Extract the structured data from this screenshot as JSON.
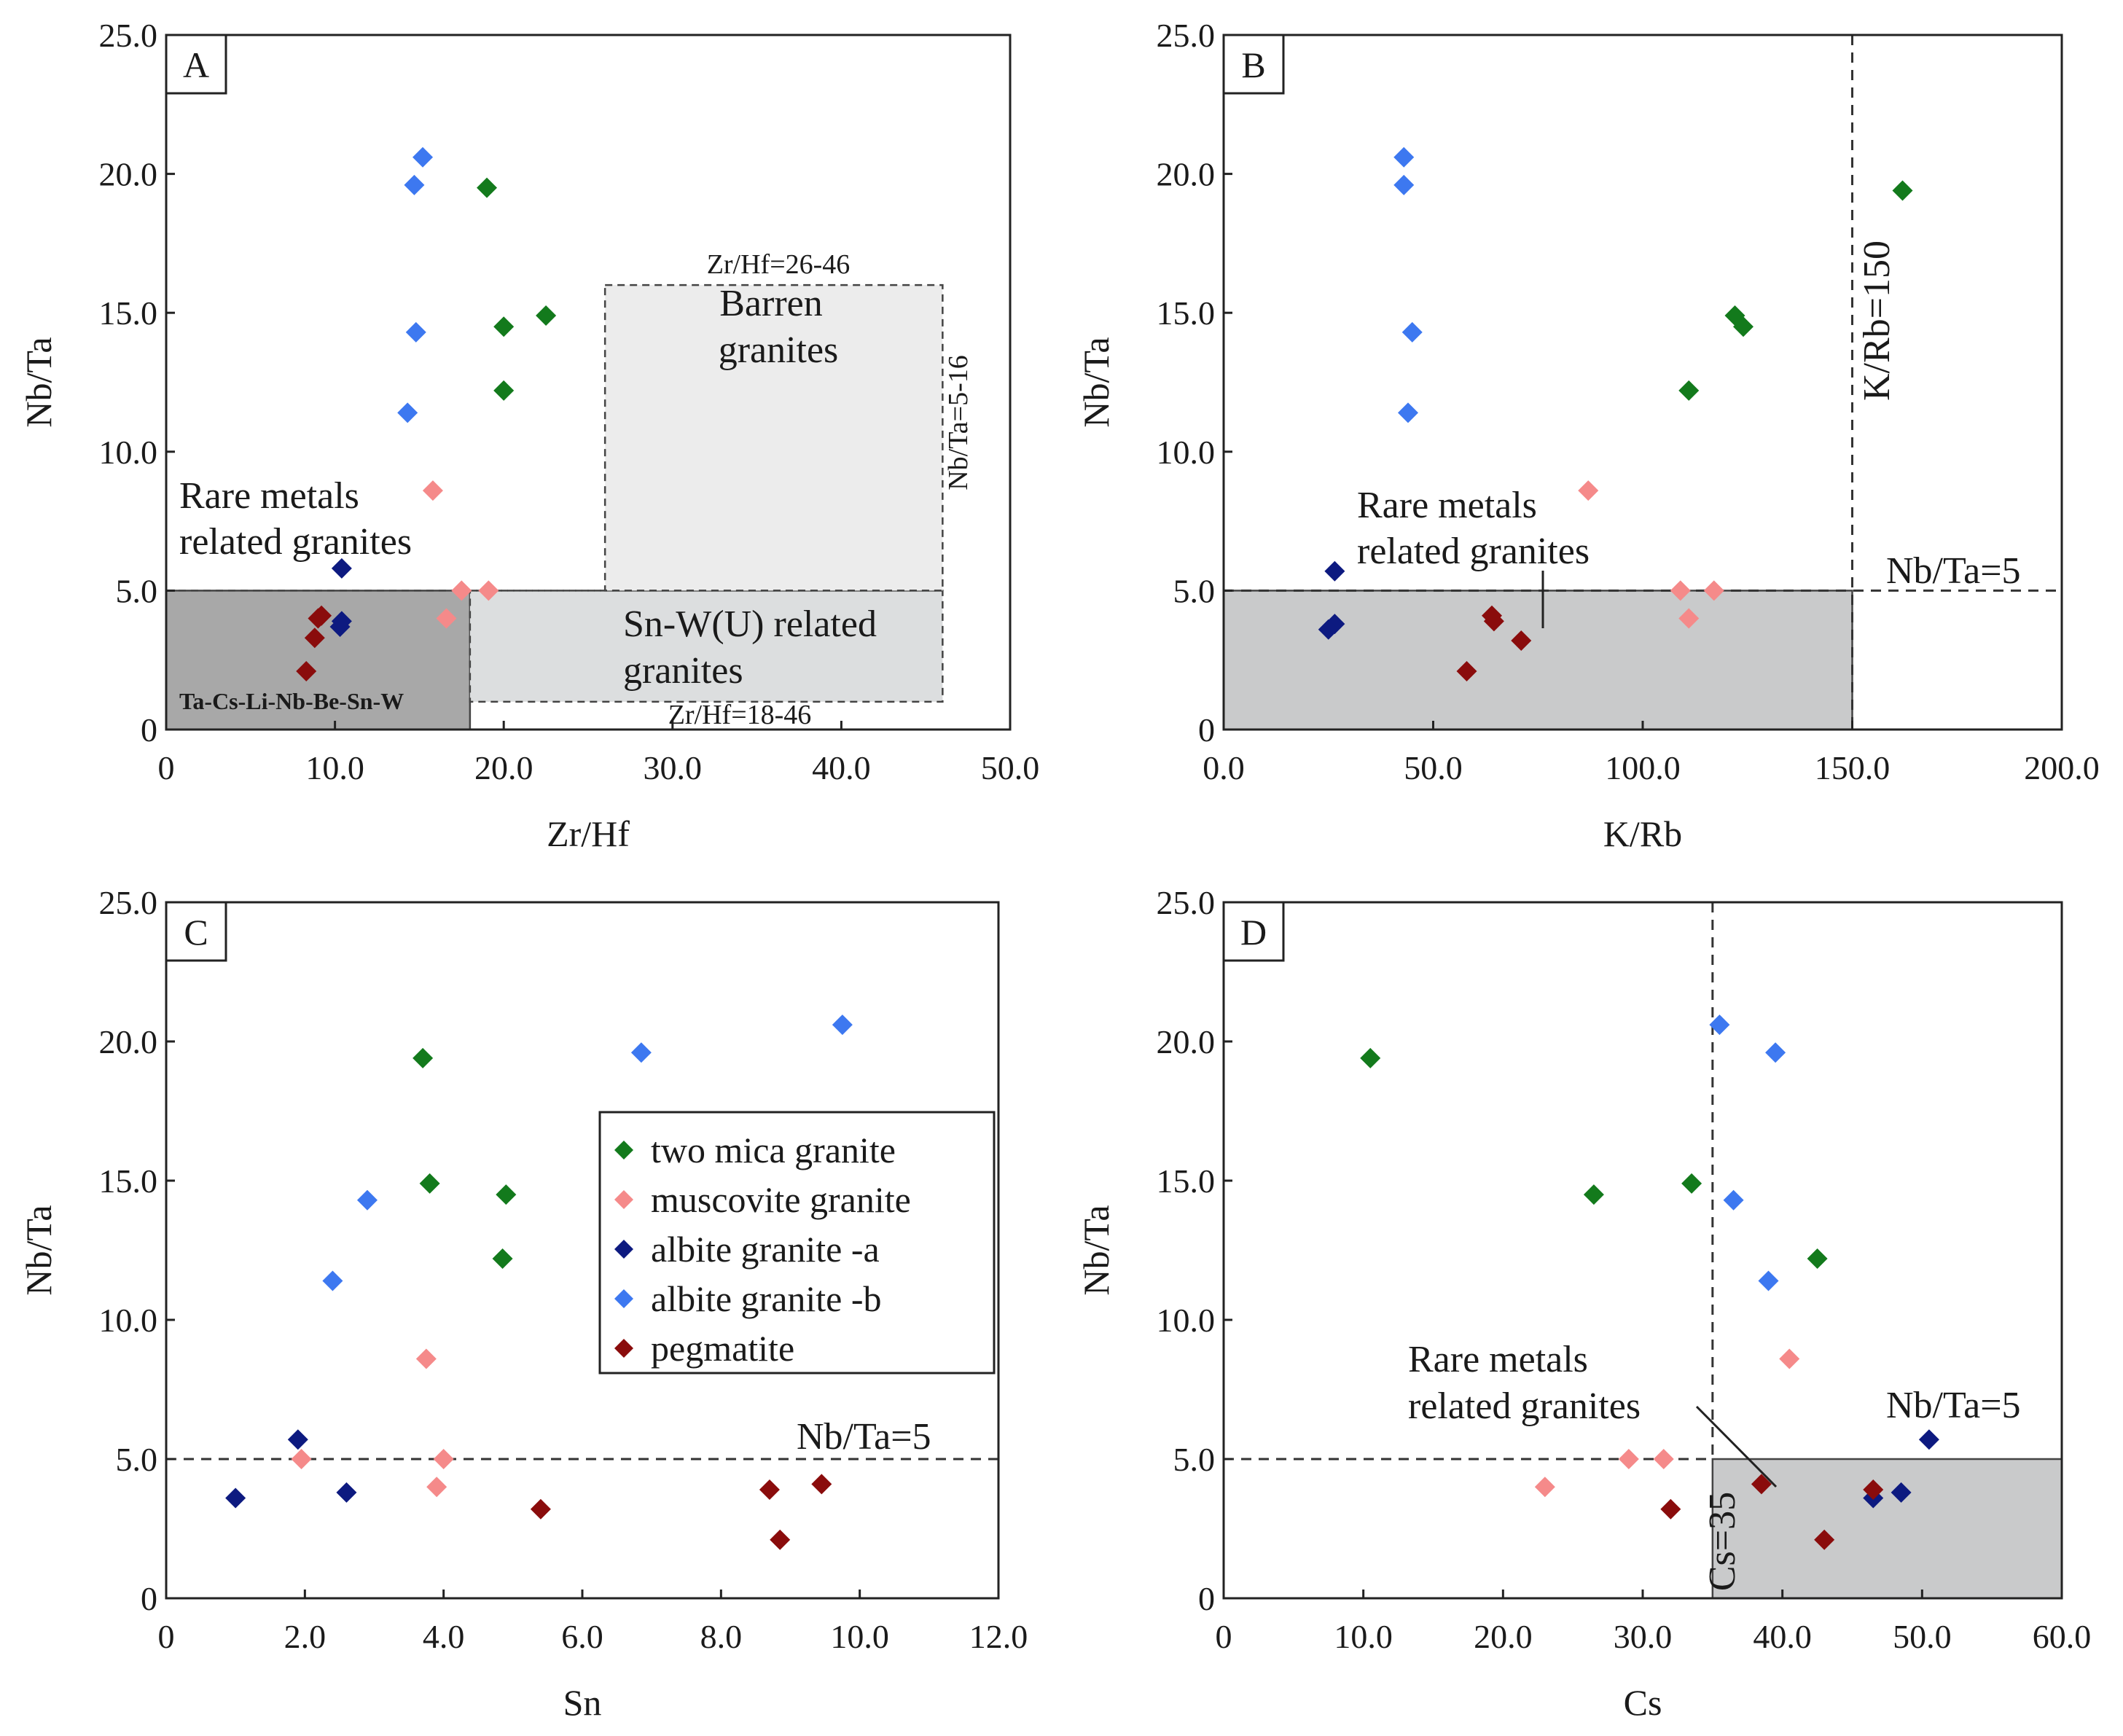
{
  "figure": {
    "legend": [
      {
        "name": "two mica granite",
        "color": "#137a1c"
      },
      {
        "name": "muscovite granite",
        "color": "#f58a8a"
      },
      {
        "name": "albite granite -a",
        "color": "#0d1a80"
      },
      {
        "name": "albite granite -b",
        "color": "#3d78f0"
      },
      {
        "name": "pegmatite",
        "color": "#8a0c0c"
      }
    ]
  },
  "chart_data": [
    {
      "panel": "A",
      "type": "scatter",
      "xlabel": "Zr/Hf",
      "ylabel": "Nb/Ta",
      "xlim": [
        0,
        50
      ],
      "ylim": [
        0,
        25
      ],
      "xticks": [
        "0",
        "10.0",
        "20.0",
        "30.0",
        "40.0",
        "50.0"
      ],
      "yticks": [
        "0",
        "5.0",
        "10.0",
        "15.0",
        "20.0",
        "25.0"
      ],
      "regions": [
        {
          "label": "Ta-Cs-Li-Nb-Be-Sn-W",
          "x": [
            0,
            18
          ],
          "y": [
            0,
            5
          ],
          "fill": "#a8a8a8"
        },
        {
          "label": "Sn-W(U) related granites",
          "x": [
            18,
            46
          ],
          "y": [
            1,
            5
          ],
          "fill": "#dcdedf"
        },
        {
          "label": "Barren granites",
          "x": [
            26,
            46
          ],
          "y": [
            5,
            16
          ],
          "fill": "#ececec"
        }
      ],
      "annotations": [
        "Rare metals",
        "related granites",
        "Barren",
        "granites",
        "Sn-W(U) related",
        "granites",
        "Zr/Hf=26-46",
        "Zr/Hf=18-46",
        "Nb/Ta=5-16",
        "Ta-Cs-Li-Nb-Be-Sn-W"
      ],
      "series": [
        {
          "name": "two mica granite",
          "points": [
            [
              19.0,
              19.5
            ],
            [
              20.0,
              14.5
            ],
            [
              22.5,
              14.9
            ],
            [
              20.0,
              12.2
            ]
          ]
        },
        {
          "name": "muscovite granite",
          "points": [
            [
              15.8,
              8.6
            ],
            [
              17.5,
              5.0
            ],
            [
              19.1,
              5.0
            ],
            [
              16.6,
              4.0
            ]
          ]
        },
        {
          "name": "albite granite -a",
          "points": [
            [
              10.4,
              5.8
            ],
            [
              10.4,
              3.9
            ],
            [
              10.3,
              3.7
            ]
          ]
        },
        {
          "name": "albite granite -b",
          "points": [
            [
              15.2,
              20.6
            ],
            [
              14.7,
              19.6
            ],
            [
              14.8,
              14.3
            ],
            [
              14.3,
              11.4
            ]
          ]
        },
        {
          "name": "pegmatite",
          "points": [
            [
              9.2,
              4.1
            ],
            [
              9.0,
              4.0
            ],
            [
              8.8,
              3.3
            ],
            [
              8.3,
              2.1
            ]
          ]
        }
      ]
    },
    {
      "panel": "B",
      "type": "scatter",
      "xlabel": "K/Rb",
      "ylabel": "Nb/Ta",
      "xlim": [
        0,
        200
      ],
      "ylim": [
        0,
        25
      ],
      "xticks": [
        "0.0",
        "50.0",
        "100.0",
        "150.0",
        "200.0"
      ],
      "yticks": [
        "0",
        "5.0",
        "10.0",
        "15.0",
        "20.0",
        "25.0"
      ],
      "regions": [
        {
          "label": "Rare metals related granites",
          "x": [
            0,
            150
          ],
          "y": [
            0,
            5
          ],
          "fill": "#c9cacb"
        }
      ],
      "annotations": [
        "Rare metals",
        "related granites",
        "K/Rb=150",
        "Nb/Ta=5"
      ],
      "series": [
        {
          "name": "two mica granite",
          "points": [
            [
              162,
              19.4
            ],
            [
              122,
              14.9
            ],
            [
              124,
              14.5
            ],
            [
              111,
              12.2
            ]
          ]
        },
        {
          "name": "muscovite granite",
          "points": [
            [
              87,
              8.6
            ],
            [
              109,
              5.0
            ],
            [
              117,
              5.0
            ],
            [
              111,
              4.0
            ]
          ]
        },
        {
          "name": "albite granite -a",
          "points": [
            [
              26.5,
              5.7
            ],
            [
              26.5,
              3.8
            ],
            [
              25.0,
              3.6
            ]
          ]
        },
        {
          "name": "albite granite -b",
          "points": [
            [
              43,
              20.6
            ],
            [
              43,
              19.6
            ],
            [
              45,
              14.3
            ],
            [
              44,
              11.4
            ]
          ]
        },
        {
          "name": "pegmatite",
          "points": [
            [
              64,
              4.1
            ],
            [
              64.5,
              3.9
            ],
            [
              71,
              3.2
            ],
            [
              58,
              2.1
            ]
          ]
        }
      ]
    },
    {
      "panel": "C",
      "type": "scatter",
      "xlabel": "Sn",
      "ylabel": "Nb/Ta",
      "xlim": [
        0,
        12
      ],
      "ylim": [
        0,
        25
      ],
      "xticks": [
        "0",
        "2.0",
        "4.0",
        "6.0",
        "8.0",
        "10.0",
        "12.0"
      ],
      "yticks": [
        "0",
        "5.0",
        "10.0",
        "15.0",
        "20.0",
        "25.0"
      ],
      "regions": [],
      "annotations": [
        "Nb/Ta=5"
      ],
      "series": [
        {
          "name": "two mica granite",
          "points": [
            [
              3.7,
              19.4
            ],
            [
              3.8,
              14.9
            ],
            [
              4.9,
              14.5
            ],
            [
              4.85,
              12.2
            ]
          ]
        },
        {
          "name": "muscovite granite",
          "points": [
            [
              3.75,
              8.6
            ],
            [
              1.95,
              5.0
            ],
            [
              4.0,
              5.0
            ],
            [
              3.9,
              4.0
            ]
          ]
        },
        {
          "name": "albite granite -a",
          "points": [
            [
              1.9,
              5.7
            ],
            [
              2.6,
              3.8
            ],
            [
              1.0,
              3.6
            ]
          ]
        },
        {
          "name": "albite granite -b",
          "points": [
            [
              9.75,
              20.6
            ],
            [
              6.85,
              19.6
            ],
            [
              2.9,
              14.3
            ],
            [
              2.4,
              11.4
            ]
          ]
        },
        {
          "name": "pegmatite",
          "points": [
            [
              9.45,
              4.1
            ],
            [
              8.7,
              3.9
            ],
            [
              5.4,
              3.2
            ],
            [
              8.85,
              2.1
            ]
          ]
        }
      ]
    },
    {
      "panel": "D",
      "type": "scatter",
      "xlabel": "Cs",
      "ylabel": "Nb/Ta",
      "xlim": [
        0,
        60
      ],
      "ylim": [
        0,
        25
      ],
      "xticks": [
        "0",
        "10.0",
        "20.0",
        "30.0",
        "40.0",
        "50.0",
        "60.0"
      ],
      "yticks": [
        "0",
        "5.0",
        "10.0",
        "15.0",
        "20.0",
        "25.0"
      ],
      "regions": [
        {
          "label": "Rare metals related granites",
          "x": [
            35,
            60
          ],
          "y": [
            0,
            5
          ],
          "fill": "#c9cacb"
        }
      ],
      "annotations": [
        "Rare metals",
        "related granites",
        "Cs=35",
        "Nb/Ta=5"
      ],
      "series": [
        {
          "name": "two mica granite",
          "points": [
            [
              10.5,
              19.4
            ],
            [
              33.5,
              14.9
            ],
            [
              26.5,
              14.5
            ],
            [
              42.5,
              12.2
            ]
          ]
        },
        {
          "name": "muscovite granite",
          "points": [
            [
              40.5,
              8.6
            ],
            [
              29.0,
              5.0
            ],
            [
              31.5,
              5.0
            ],
            [
              23.0,
              4.0
            ]
          ]
        },
        {
          "name": "albite granite -a",
          "points": [
            [
              50.5,
              5.7
            ],
            [
              48.5,
              3.8
            ],
            [
              46.5,
              3.6
            ]
          ]
        },
        {
          "name": "albite granite -b",
          "points": [
            [
              35.5,
              20.6
            ],
            [
              39.5,
              19.6
            ],
            [
              36.5,
              14.3
            ],
            [
              39.0,
              11.4
            ]
          ]
        },
        {
          "name": "pegmatite",
          "points": [
            [
              38.5,
              4.1
            ],
            [
              46.5,
              3.9
            ],
            [
              32.0,
              3.2
            ],
            [
              43.0,
              2.1
            ]
          ]
        }
      ]
    }
  ]
}
